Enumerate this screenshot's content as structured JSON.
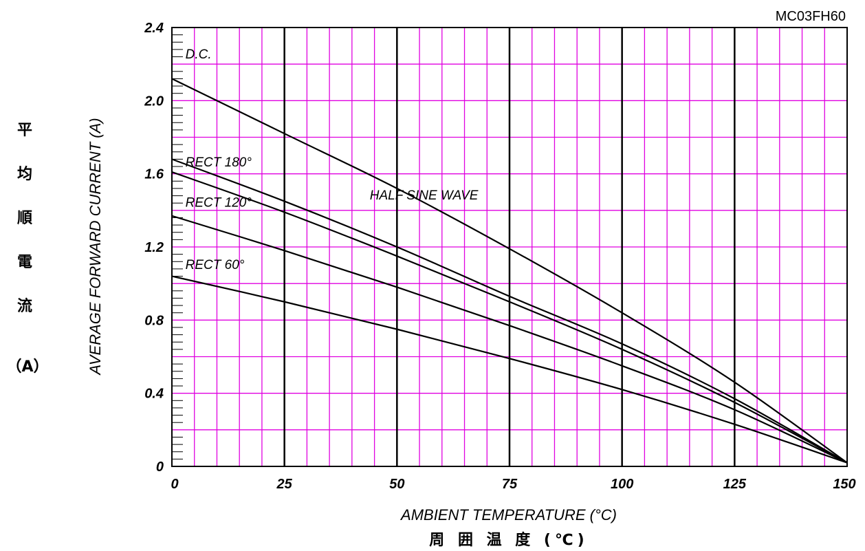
{
  "model_code": "MC03FH60",
  "chart_data": {
    "type": "line",
    "xlabel": "AMBIENT TEMPERATURE (°C)",
    "xlabel_jp": "周 囲 温 度 (℃)",
    "ylabel": "AVERAGE FORWARD CURRENT (A)",
    "ylabel_jp": [
      "平",
      "均",
      "順",
      "電",
      "流"
    ],
    "ylabel_jp_unit": "（A）",
    "xlim": [
      0,
      150
    ],
    "ylim": [
      0,
      2.4
    ],
    "x_ticks": [
      "0",
      "25",
      "50",
      "75",
      "100",
      "125",
      "150"
    ],
    "y_ticks": [
      "0",
      "0.4",
      "0.8",
      "1.2",
      "1.6",
      "2.0",
      "2.4"
    ],
    "grid": true,
    "series": [
      {
        "name": "D.C.",
        "x": [
          0,
          25,
          50,
          75,
          100,
          125,
          150
        ],
        "y": [
          2.12,
          1.82,
          1.52,
          1.19,
          0.84,
          0.46,
          0.02
        ]
      },
      {
        "name": "RECT 180°",
        "x": [
          0,
          25,
          50,
          75,
          100,
          125,
          150
        ],
        "y": [
          1.68,
          1.45,
          1.2,
          0.93,
          0.67,
          0.37,
          0.02
        ]
      },
      {
        "name": "HALF SINE WAVE",
        "x": [
          0,
          25,
          50,
          75,
          100,
          125,
          150
        ],
        "y": [
          1.61,
          1.39,
          1.15,
          0.9,
          0.64,
          0.35,
          0.02
        ]
      },
      {
        "name": "RECT 120°",
        "x": [
          0,
          25,
          50,
          75,
          100,
          125,
          150
        ],
        "y": [
          1.37,
          1.18,
          0.98,
          0.77,
          0.55,
          0.31,
          0.02
        ]
      },
      {
        "name": "RECT 60°",
        "x": [
          0,
          25,
          50,
          75,
          100,
          125,
          150
        ],
        "y": [
          1.04,
          0.9,
          0.75,
          0.59,
          0.42,
          0.23,
          0.02
        ]
      }
    ]
  }
}
